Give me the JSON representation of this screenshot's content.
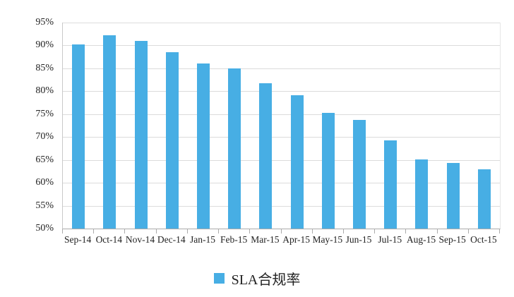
{
  "chart_data": {
    "type": "bar",
    "title": "",
    "xlabel": "",
    "ylabel": "",
    "categories": [
      "Sep-14",
      "Oct-14",
      "Nov-14",
      "Dec-14",
      "Jan-15",
      "Feb-15",
      "Mar-15",
      "Apr-15",
      "May-15",
      "Jun-15",
      "Jul-15",
      "Aug-15",
      "Sep-15",
      "Oct-15"
    ],
    "series": [
      {
        "name": "SLA合规率",
        "values": [
          90.2,
          92.3,
          91.0,
          88.6,
          86.0,
          85.0,
          81.8,
          79.1,
          75.2,
          73.8,
          69.2,
          65.1,
          64.4,
          62.9
        ]
      }
    ],
    "ylim": [
      50,
      95
    ],
    "y_ticks": [
      {
        "label": "95%",
        "value": 95
      },
      {
        "label": "90%",
        "value": 90
      },
      {
        "label": "85%",
        "value": 85
      },
      {
        "label": "80%",
        "value": 80
      },
      {
        "label": "75%",
        "value": 75
      },
      {
        "label": "70%",
        "value": 70
      },
      {
        "label": "65%",
        "value": 65
      },
      {
        "label": "60%",
        "value": 60
      },
      {
        "label": "55%",
        "value": 55
      },
      {
        "label": "50%",
        "value": 50
      }
    ],
    "grid": true,
    "legend_position": "bottom"
  },
  "colors": {
    "bar": "#47AEE4",
    "gridline": "#DCDCDC",
    "axis_line": "#ABABAB",
    "border": "#C9C9C9",
    "text": "#222222"
  }
}
